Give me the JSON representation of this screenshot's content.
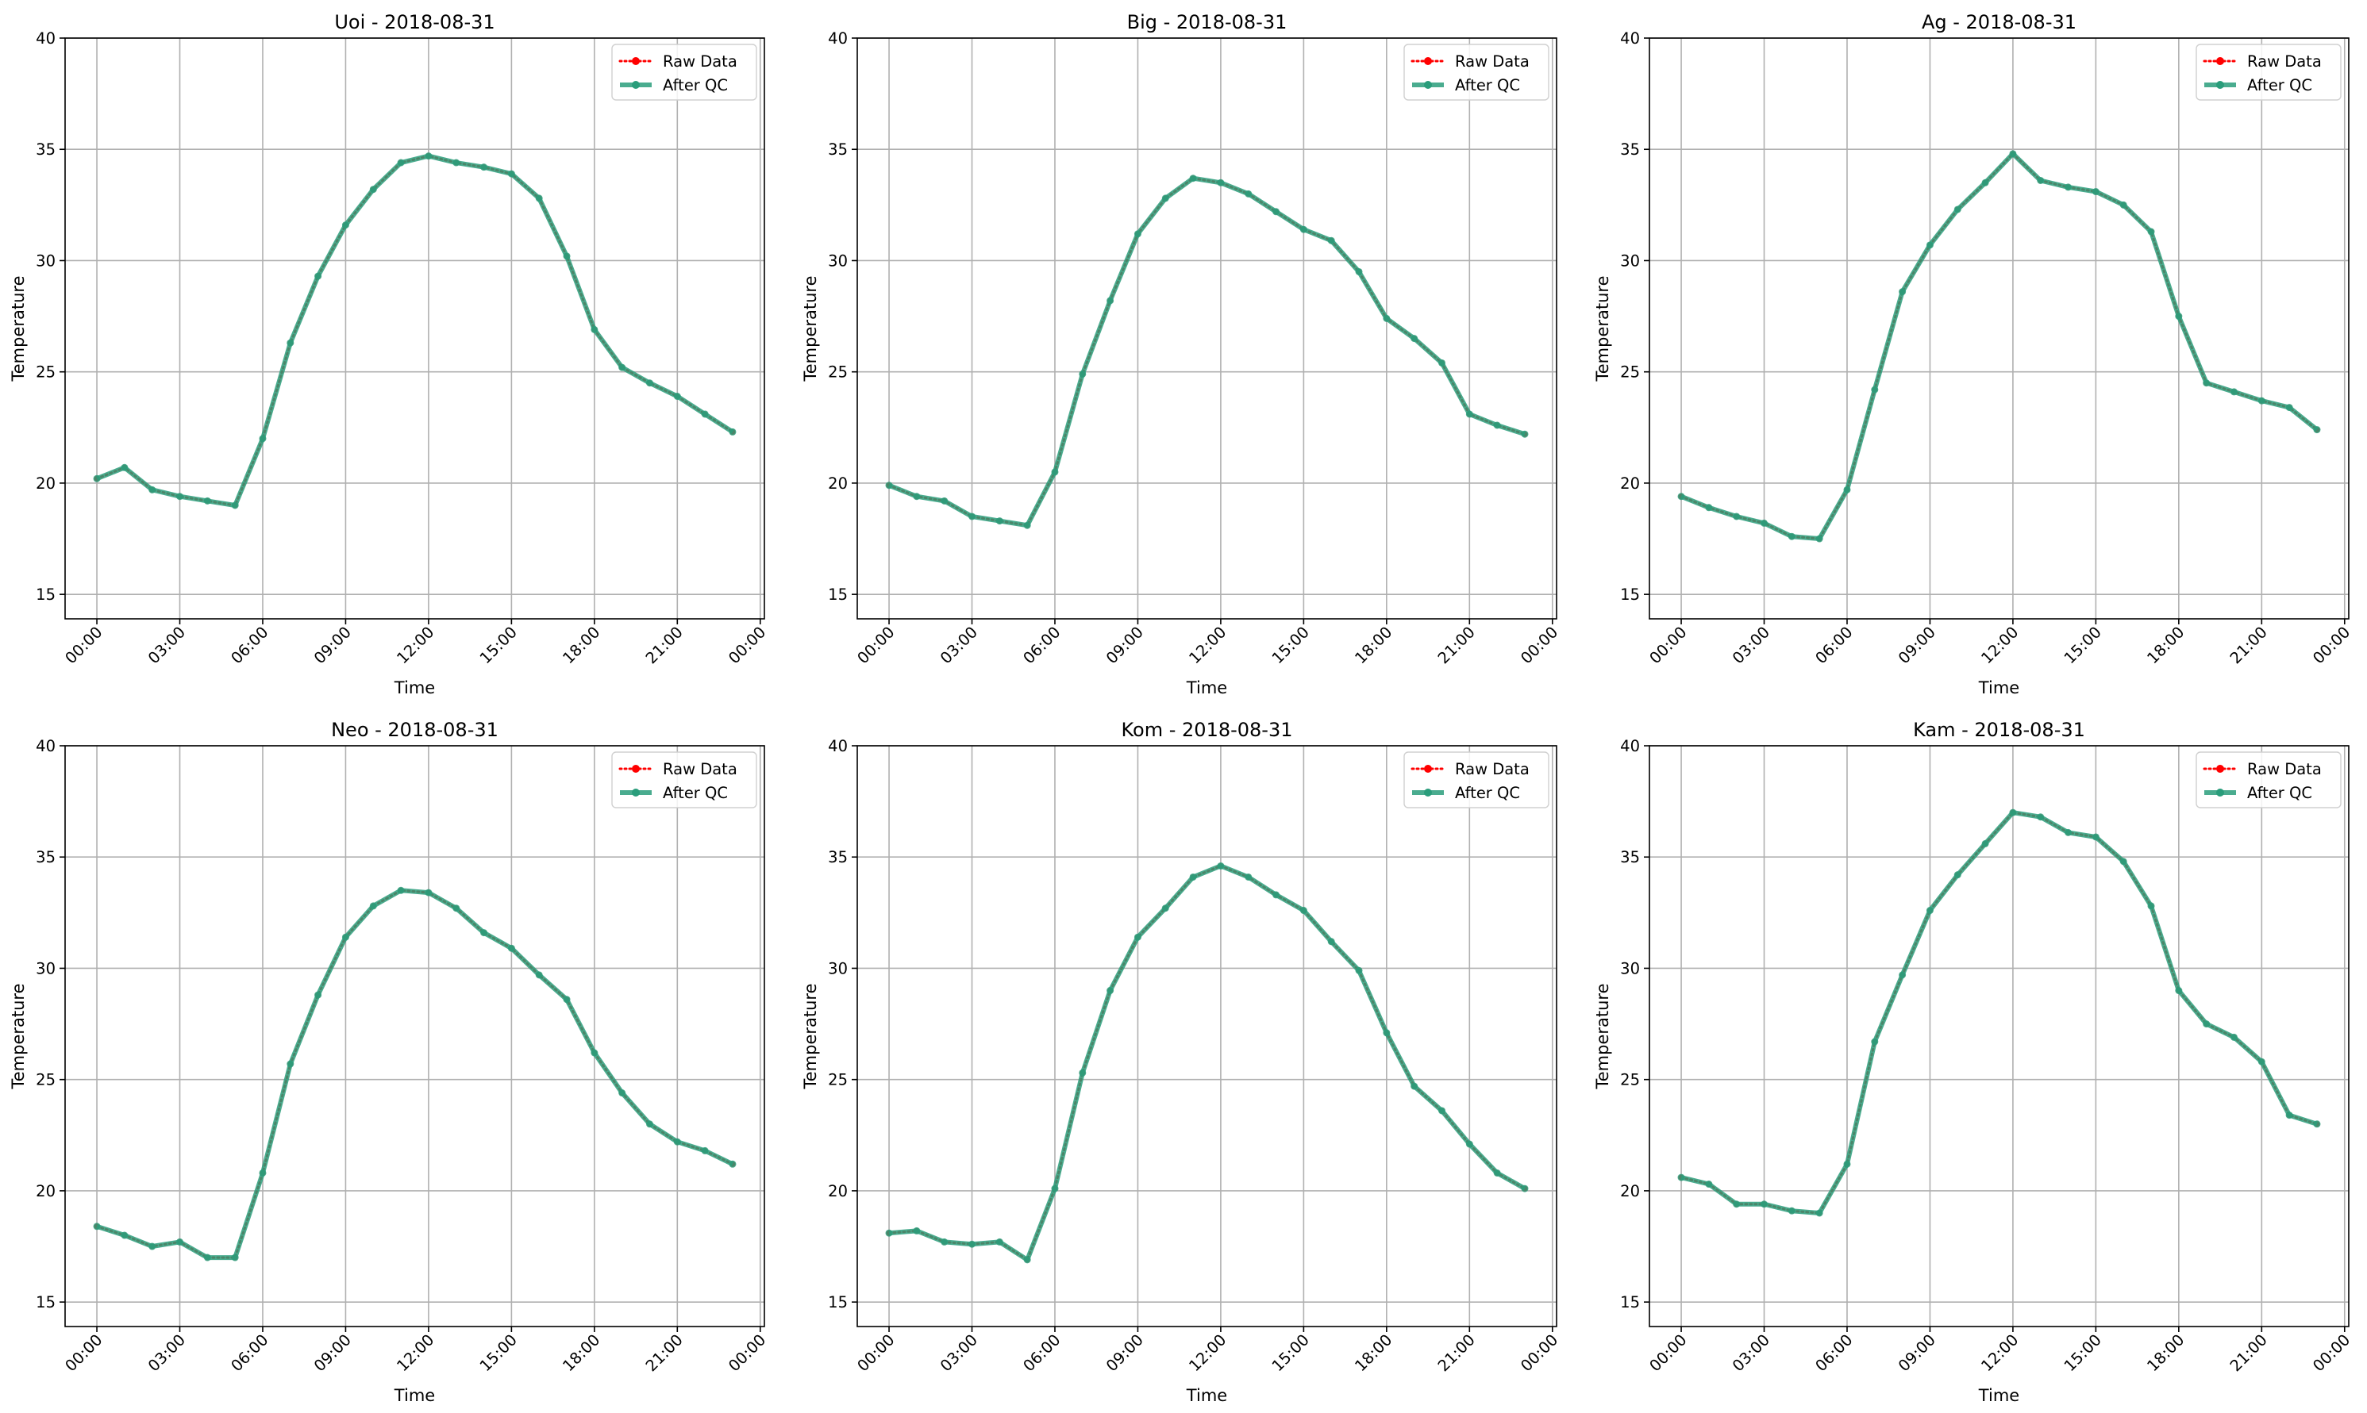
{
  "figure": {
    "x_tick_labels": [
      "00:00",
      "03:00",
      "06:00",
      "09:00",
      "12:00",
      "15:00",
      "18:00",
      "21:00",
      "00:00"
    ],
    "y_ticks": [
      15,
      20,
      25,
      30,
      35,
      40
    ]
  },
  "colors": {
    "raw": "#ff0000",
    "qc": "#2a9d7b",
    "grid": "#b0b0b0",
    "axis": "#000000"
  },
  "chart_data": [
    {
      "type": "line",
      "title": "Uoi - 2018-08-31",
      "xlabel": "Time",
      "ylabel": "Temperature",
      "xlim": [
        -1.15,
        24.15
      ],
      "ylim": [
        13.9,
        40
      ],
      "x": [
        0,
        1,
        2,
        3,
        4,
        5,
        6,
        7,
        8,
        9,
        10,
        11,
        12,
        13,
        14,
        15,
        16,
        17,
        18,
        19,
        20,
        21,
        22,
        23
      ],
      "legend": "top-right",
      "grid": true,
      "series": [
        {
          "name": "Raw Data",
          "style": "dotted-markers",
          "values": [
            20.2,
            20.7,
            19.7,
            19.4,
            19.2,
            19.0,
            22.0,
            26.3,
            29.3,
            31.6,
            33.2,
            34.4,
            34.7,
            34.4,
            34.2,
            33.9,
            32.8,
            30.2,
            26.9,
            25.2,
            24.5,
            23.9,
            23.1,
            22.3
          ]
        },
        {
          "name": "After QC",
          "style": "solid-markers",
          "values": [
            20.2,
            20.7,
            19.7,
            19.4,
            19.2,
            19.0,
            22.0,
            26.3,
            29.3,
            31.6,
            33.2,
            34.4,
            34.7,
            34.4,
            34.2,
            33.9,
            32.8,
            30.2,
            26.9,
            25.2,
            24.5,
            23.9,
            23.1,
            22.3
          ]
        }
      ]
    },
    {
      "type": "line",
      "title": "Big - 2018-08-31",
      "xlabel": "Time",
      "ylabel": "Temperature",
      "xlim": [
        -1.15,
        24.15
      ],
      "ylim": [
        13.9,
        40
      ],
      "x": [
        0,
        1,
        2,
        3,
        4,
        5,
        6,
        7,
        8,
        9,
        10,
        11,
        12,
        13,
        14,
        15,
        16,
        17,
        18,
        19,
        20,
        21,
        22,
        23
      ],
      "legend": "top-right",
      "grid": true,
      "series": [
        {
          "name": "Raw Data",
          "style": "dotted-markers",
          "values": [
            19.9,
            19.4,
            19.2,
            18.5,
            18.3,
            18.1,
            20.5,
            24.9,
            28.2,
            31.2,
            32.8,
            33.7,
            33.5,
            33.0,
            32.2,
            31.4,
            30.9,
            29.5,
            27.4,
            26.5,
            25.4,
            23.1,
            22.6,
            22.2
          ]
        },
        {
          "name": "After QC",
          "style": "solid-markers",
          "values": [
            19.9,
            19.4,
            19.2,
            18.5,
            18.3,
            18.1,
            20.5,
            24.9,
            28.2,
            31.2,
            32.8,
            33.7,
            33.5,
            33.0,
            32.2,
            31.4,
            30.9,
            29.5,
            27.4,
            26.5,
            25.4,
            23.1,
            22.6,
            22.2
          ]
        }
      ]
    },
    {
      "type": "line",
      "title": "Ag - 2018-08-31",
      "xlabel": "Time",
      "ylabel": "Temperature",
      "xlim": [
        -1.15,
        24.15
      ],
      "ylim": [
        13.9,
        40
      ],
      "x": [
        0,
        1,
        2,
        3,
        4,
        5,
        6,
        7,
        8,
        9,
        10,
        11,
        12,
        13,
        14,
        15,
        16,
        17,
        18,
        19,
        20,
        21,
        22,
        23
      ],
      "legend": "top-right",
      "grid": true,
      "series": [
        {
          "name": "Raw Data",
          "style": "dotted-markers",
          "values": [
            19.4,
            18.9,
            18.5,
            18.2,
            17.6,
            17.5,
            19.7,
            24.2,
            28.6,
            30.7,
            32.3,
            33.5,
            34.8,
            33.6,
            33.3,
            33.1,
            32.5,
            31.3,
            27.5,
            24.5,
            24.1,
            23.7,
            23.4,
            22.4
          ]
        },
        {
          "name": "After QC",
          "style": "solid-markers",
          "values": [
            19.4,
            18.9,
            18.5,
            18.2,
            17.6,
            17.5,
            19.7,
            24.2,
            28.6,
            30.7,
            32.3,
            33.5,
            34.8,
            33.6,
            33.3,
            33.1,
            32.5,
            31.3,
            27.5,
            24.5,
            24.1,
            23.7,
            23.4,
            22.4
          ]
        }
      ]
    },
    {
      "type": "line",
      "title": "Neo - 2018-08-31",
      "xlabel": "Time",
      "ylabel": "Temperature",
      "xlim": [
        -1.15,
        24.15
      ],
      "ylim": [
        13.9,
        40
      ],
      "x": [
        0,
        1,
        2,
        3,
        4,
        5,
        6,
        7,
        8,
        9,
        10,
        11,
        12,
        13,
        14,
        15,
        16,
        17,
        18,
        19,
        20,
        21,
        22,
        23
      ],
      "legend": "top-right",
      "grid": true,
      "series": [
        {
          "name": "Raw Data",
          "style": "dotted-markers",
          "values": [
            18.4,
            18.0,
            17.5,
            17.7,
            17.0,
            17.0,
            20.8,
            25.7,
            28.8,
            31.4,
            32.8,
            33.5,
            33.4,
            32.7,
            31.6,
            30.9,
            29.7,
            28.6,
            26.2,
            24.4,
            23.0,
            22.2,
            21.8,
            21.2
          ]
        },
        {
          "name": "After QC",
          "style": "solid-markers",
          "values": [
            18.4,
            18.0,
            17.5,
            17.7,
            17.0,
            17.0,
            20.8,
            25.7,
            28.8,
            31.4,
            32.8,
            33.5,
            33.4,
            32.7,
            31.6,
            30.9,
            29.7,
            28.6,
            26.2,
            24.4,
            23.0,
            22.2,
            21.8,
            21.2
          ]
        }
      ]
    },
    {
      "type": "line",
      "title": "Kom - 2018-08-31",
      "xlabel": "Time",
      "ylabel": "Temperature",
      "xlim": [
        -1.15,
        24.15
      ],
      "ylim": [
        13.9,
        40
      ],
      "x": [
        0,
        1,
        2,
        3,
        4,
        5,
        6,
        7,
        8,
        9,
        10,
        11,
        12,
        13,
        14,
        15,
        16,
        17,
        18,
        19,
        20,
        21,
        22,
        23
      ],
      "legend": "top-right",
      "grid": true,
      "series": [
        {
          "name": "Raw Data",
          "style": "dotted-markers",
          "values": [
            18.1,
            18.2,
            17.7,
            17.6,
            17.7,
            16.9,
            20.1,
            25.3,
            29.0,
            31.4,
            32.7,
            34.1,
            34.6,
            34.1,
            33.3,
            32.6,
            31.2,
            29.9,
            27.1,
            24.7,
            23.6,
            22.1,
            20.8,
            20.1
          ]
        },
        {
          "name": "After QC",
          "style": "solid-markers",
          "values": [
            18.1,
            18.2,
            17.7,
            17.6,
            17.7,
            16.9,
            20.1,
            25.3,
            29.0,
            31.4,
            32.7,
            34.1,
            34.6,
            34.1,
            33.3,
            32.6,
            31.2,
            29.9,
            27.1,
            24.7,
            23.6,
            22.1,
            20.8,
            20.1
          ]
        }
      ]
    },
    {
      "type": "line",
      "title": "Kam - 2018-08-31",
      "xlabel": "Time",
      "ylabel": "Temperature",
      "xlim": [
        -1.15,
        24.15
      ],
      "ylim": [
        13.9,
        40
      ],
      "x": [
        0,
        1,
        2,
        3,
        4,
        5,
        6,
        7,
        8,
        9,
        10,
        11,
        12,
        13,
        14,
        15,
        16,
        17,
        18,
        19,
        20,
        21,
        22,
        23
      ],
      "legend": "top-right",
      "grid": true,
      "series": [
        {
          "name": "Raw Data",
          "style": "dotted-markers",
          "values": [
            20.6,
            20.3,
            19.4,
            19.4,
            19.1,
            19.0,
            21.2,
            26.7,
            29.7,
            32.6,
            34.2,
            35.6,
            37.0,
            36.8,
            36.1,
            35.9,
            34.8,
            32.8,
            29.0,
            27.5,
            26.9,
            25.8,
            23.4,
            23.0
          ]
        },
        {
          "name": "After QC",
          "style": "solid-markers",
          "values": [
            20.6,
            20.3,
            19.4,
            19.4,
            19.1,
            19.0,
            21.2,
            26.7,
            29.7,
            32.6,
            34.2,
            35.6,
            37.0,
            36.8,
            36.1,
            35.9,
            34.8,
            32.8,
            29.0,
            27.5,
            26.9,
            25.8,
            23.4,
            23.0
          ]
        }
      ]
    }
  ]
}
